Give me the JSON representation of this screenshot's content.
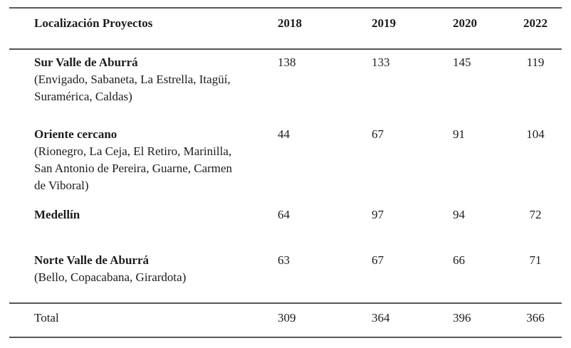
{
  "page": {
    "background": "#ffffff",
    "text_color": "#1c1c1c",
    "rule_color": "#575757"
  },
  "table": {
    "header": {
      "location_label": "Localización Proyectos",
      "years": [
        "2018",
        "2019",
        "2020",
        "2022"
      ]
    },
    "rows": [
      {
        "name": "Sur Valle de Aburrá",
        "detail_lines": [
          "(Envigado, Sabaneta, La Estrella, Itagüí,",
          "Suramérica, Caldas)"
        ],
        "values": [
          "138",
          "133",
          "145",
          "119"
        ]
      },
      {
        "name": "Oriente cercano",
        "detail_lines": [
          "(Rionegro, La Ceja, El Retiro, Marinilla,",
          "San Antonio de Pereira, Guarne, Carmen",
          "de Viboral)"
        ],
        "values": [
          "44",
          "67",
          "91",
          "104"
        ]
      },
      {
        "name": "Medellín",
        "detail_lines": [],
        "values": [
          "64",
          "97",
          "94",
          "72"
        ]
      },
      {
        "name": "Norte Valle de Aburrá",
        "detail_lines": [
          "(Bello, Copacabana, Girardota)"
        ],
        "values": [
          "63",
          "67",
          "66",
          "71"
        ]
      }
    ],
    "total": {
      "label": "Total",
      "values": [
        "309",
        "364",
        "396",
        "366"
      ]
    }
  },
  "chart_data": {
    "type": "table",
    "title": "Localización Proyectos",
    "columns": [
      "Localización Proyectos",
      "2018",
      "2019",
      "2020",
      "2022"
    ],
    "rows": [
      [
        "Sur Valle de Aburrá (Envigado, Sabaneta, La Estrella, Itagüí, Suramérica, Caldas)",
        138,
        133,
        145,
        119
      ],
      [
        "Oriente cercano (Rionegro, La Ceja, El Retiro, Marinilla, San Antonio de Pereira, Guarne, Carmen de Viboral)",
        44,
        67,
        91,
        104
      ],
      [
        "Medellín",
        64,
        97,
        94,
        72
      ],
      [
        "Norte Valle de Aburrá (Bello, Copacabana, Girardota)",
        63,
        67,
        66,
        71
      ],
      [
        "Total",
        309,
        364,
        396,
        366
      ]
    ]
  }
}
